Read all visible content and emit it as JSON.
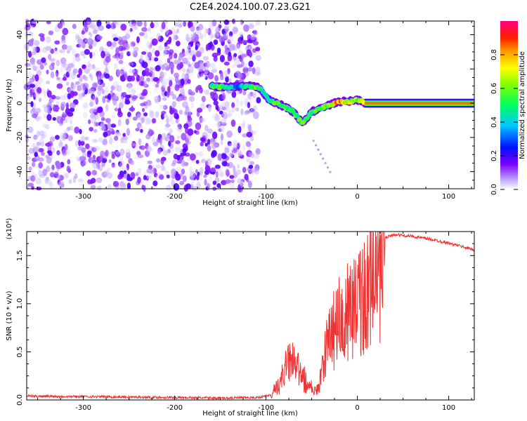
{
  "title": "C2E4.2024.100.07.23.G21",
  "chart_data": [
    {
      "type": "heatmap",
      "xlabel": "Height of straight line (km)",
      "ylabel": "Frequency (Hz)",
      "xlim": [
        -362,
        128
      ],
      "ylim": [
        -50,
        48
      ],
      "xticks": [
        -300,
        -200,
        -100,
        0,
        100
      ],
      "yticks": [
        -40,
        -20,
        0,
        20,
        40
      ],
      "colorbar": {
        "label": "Normalized spectral amplitude",
        "ticks": [
          "0.0",
          "0.2",
          "0.4",
          "0.6",
          "0.8"
        ],
        "range": [
          0,
          1
        ]
      },
      "noise_region": {
        "x_range": [
          -362,
          -108
        ],
        "y_range": [
          -50,
          48
        ],
        "amplitude": 0.15
      },
      "ridge": [
        {
          "x": -160,
          "y": 10,
          "a": 0.5
        },
        {
          "x": -150,
          "y": 9.5,
          "a": 0.55
        },
        {
          "x": -140,
          "y": 9.5,
          "a": 0.45
        },
        {
          "x": -130,
          "y": 9.5,
          "a": 0.3
        },
        {
          "x": -120,
          "y": 10,
          "a": 0.5
        },
        {
          "x": -110,
          "y": 9.5,
          "a": 0.6
        },
        {
          "x": -105,
          "y": 8,
          "a": 0.5
        },
        {
          "x": -100,
          "y": 4,
          "a": 0.4
        },
        {
          "x": -95,
          "y": 1,
          "a": 0.5
        },
        {
          "x": -88,
          "y": 0,
          "a": 0.6
        },
        {
          "x": -80,
          "y": -2,
          "a": 0.55
        },
        {
          "x": -70,
          "y": -5,
          "a": 0.5
        },
        {
          "x": -60,
          "y": -12,
          "a": 0.55
        },
        {
          "x": -50,
          "y": -5,
          "a": 0.5
        },
        {
          "x": -40,
          "y": -3,
          "a": 0.55
        },
        {
          "x": -30,
          "y": -1,
          "a": 0.6
        },
        {
          "x": -20,
          "y": 1,
          "a": 0.85
        },
        {
          "x": -10,
          "y": 1,
          "a": 0.7
        },
        {
          "x": 0,
          "y": 2,
          "a": 0.6
        },
        {
          "x": 10,
          "y": 0,
          "a": 0.8
        },
        {
          "x": 128,
          "y": 0,
          "a": 0.85
        }
      ]
    },
    {
      "type": "line",
      "xlabel": "Height of straight line (km)",
      "ylabel": "SNR (10 * v/v)",
      "scale_note": "(x10⁴)",
      "xlim": [
        -362,
        128
      ],
      "ylim": [
        0,
        1.75
      ],
      "xticks": [
        -300,
        -200,
        -100,
        0,
        100
      ],
      "yticks": [
        "0.0",
        "0.5",
        "1.0",
        "1.5"
      ],
      "color": "#ee3333",
      "envelope": [
        {
          "x": -362,
          "y": 0.04
        },
        {
          "x": -300,
          "y": 0.035
        },
        {
          "x": -200,
          "y": 0.025
        },
        {
          "x": -150,
          "y": 0.02
        },
        {
          "x": -110,
          "y": 0.025
        },
        {
          "x": -95,
          "y": 0.05
        },
        {
          "x": -85,
          "y": 0.2
        },
        {
          "x": -80,
          "y": 0.35
        },
        {
          "x": -72,
          "y": 0.5
        },
        {
          "x": -65,
          "y": 0.35
        },
        {
          "x": -58,
          "y": 0.25
        },
        {
          "x": -52,
          "y": 0.15
        },
        {
          "x": -45,
          "y": 0.1
        },
        {
          "x": -40,
          "y": 0.25
        },
        {
          "x": -35,
          "y": 0.55
        },
        {
          "x": -30,
          "y": 0.8
        },
        {
          "x": -25,
          "y": 0.9
        },
        {
          "x": -20,
          "y": 0.95
        },
        {
          "x": -10,
          "y": 1.05
        },
        {
          "x": 0,
          "y": 1.15
        },
        {
          "x": 10,
          "y": 1.3
        },
        {
          "x": 20,
          "y": 1.55
        },
        {
          "x": 30,
          "y": 1.68
        },
        {
          "x": 40,
          "y": 1.72
        },
        {
          "x": 60,
          "y": 1.7
        },
        {
          "x": 80,
          "y": 1.67
        },
        {
          "x": 100,
          "y": 1.63
        },
        {
          "x": 128,
          "y": 1.56
        }
      ]
    }
  ]
}
